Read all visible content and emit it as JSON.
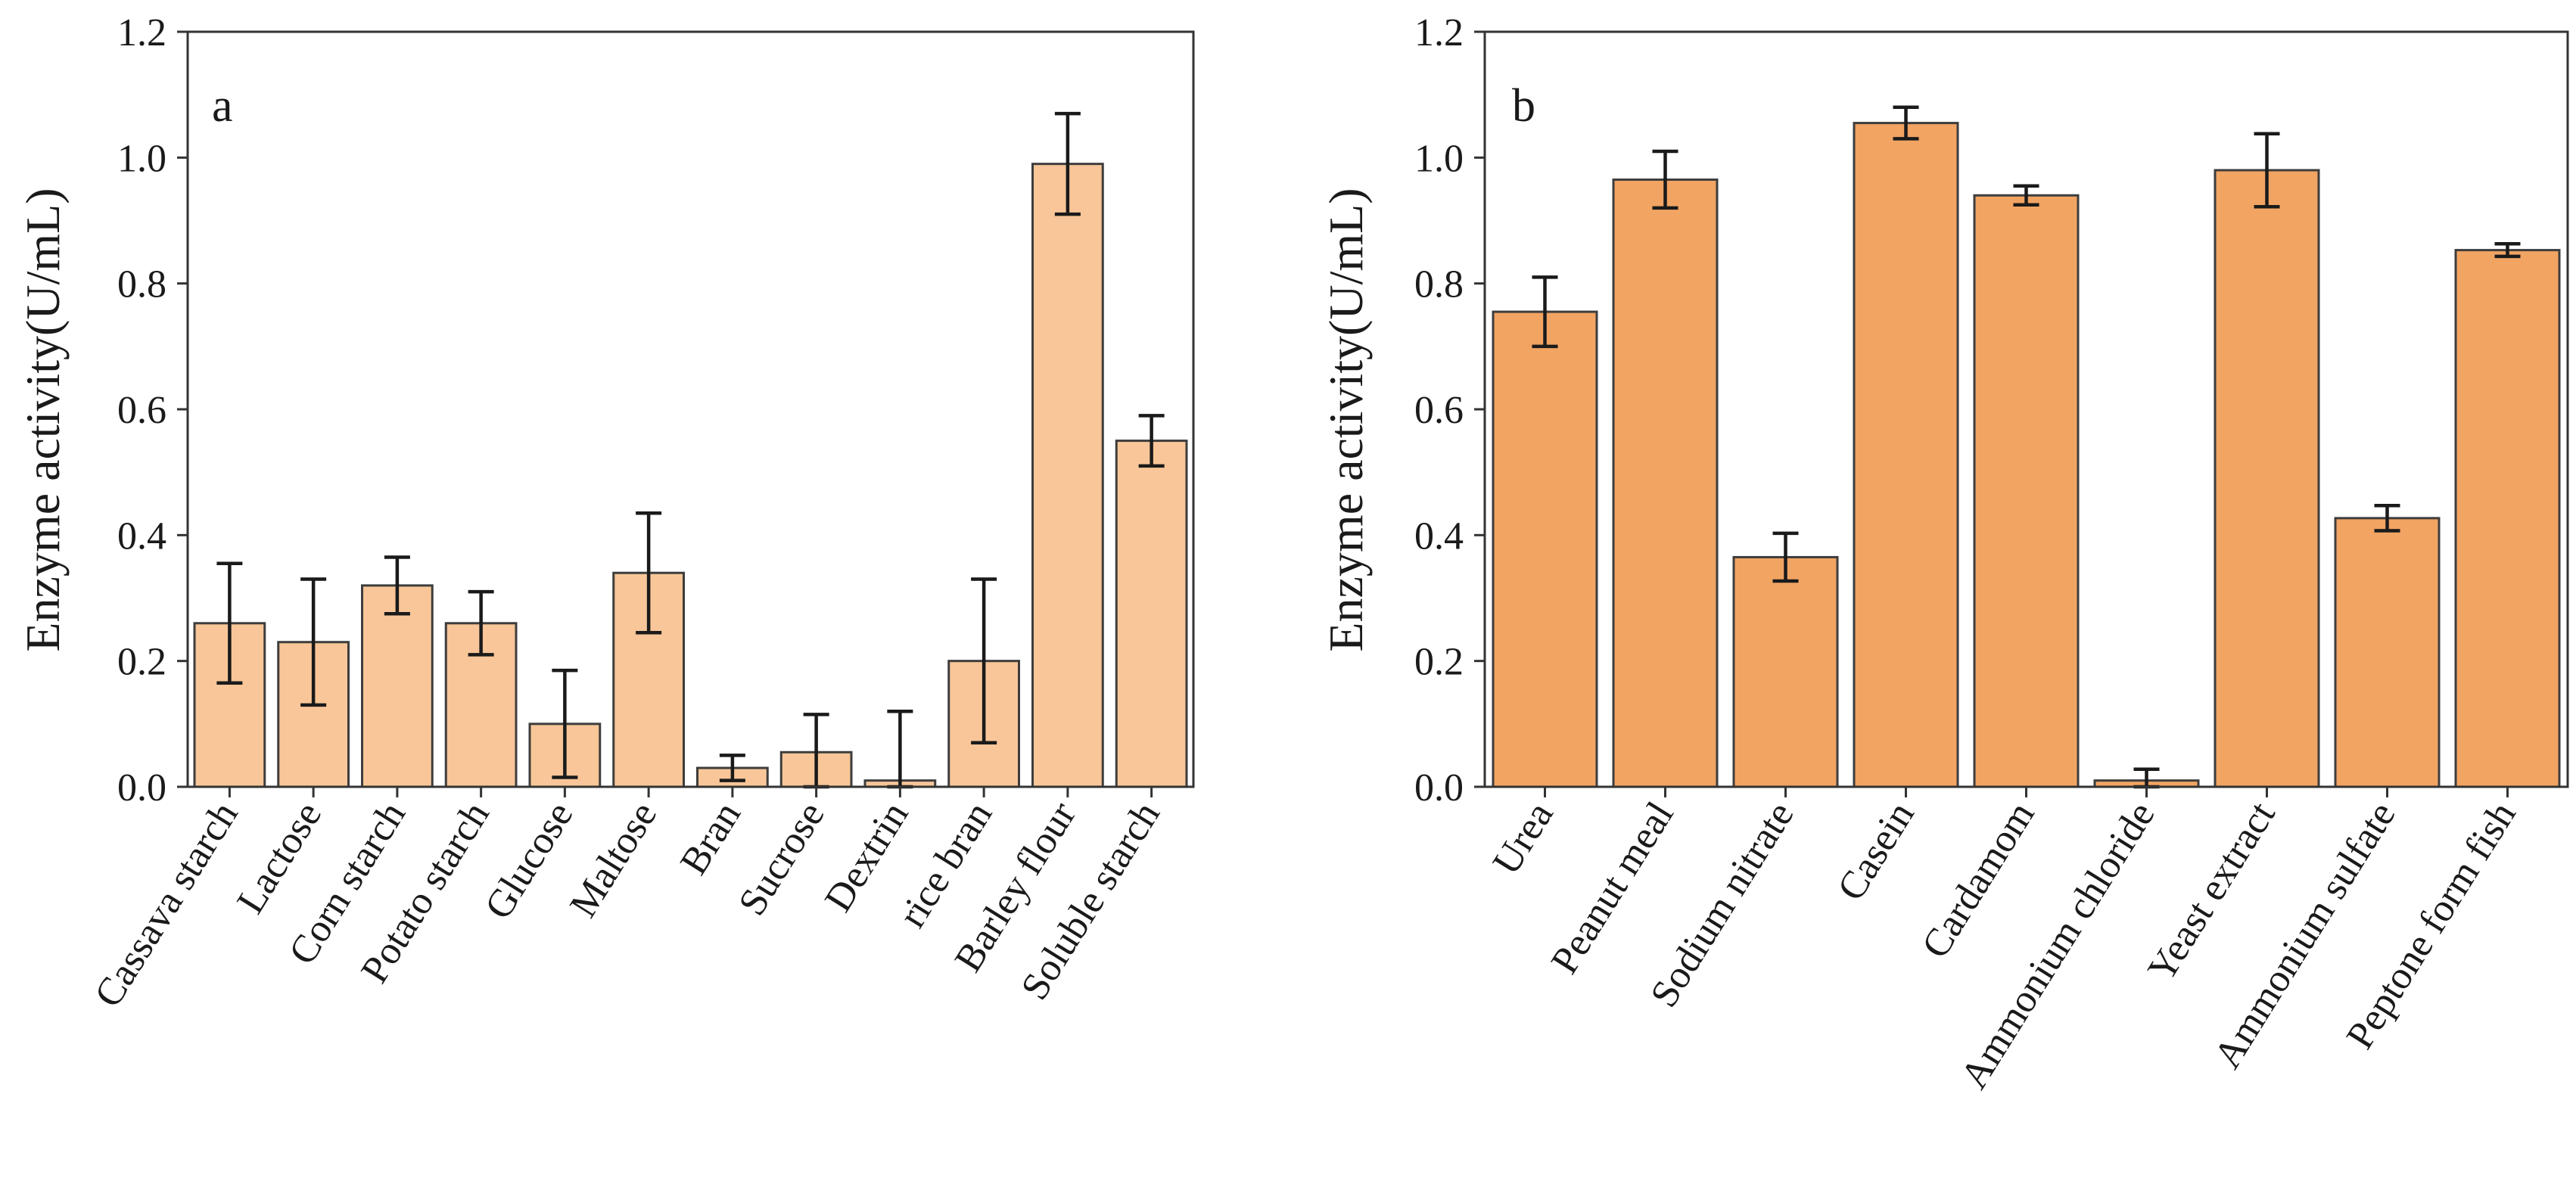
{
  "chart_data": [
    {
      "type": "bar",
      "panel_label": "a",
      "title": "",
      "xlabel": "",
      "ylabel": "Enzyme activity(U/mL)",
      "ylim": [
        0,
        1.2
      ],
      "yticks": [
        "0.0",
        "0.2",
        "0.4",
        "0.6",
        "0.8",
        "1.0",
        "1.2"
      ],
      "bar_color": "#f8c698",
      "categories": [
        "Cassava starch",
        "Lactose",
        "Corn starch",
        "Potato starch",
        "Glucose",
        "Maltose",
        "Bran",
        "Sucrose",
        "Dextrin",
        "rice bran",
        "Barley flour",
        "Soluble starch"
      ],
      "values": [
        0.26,
        0.23,
        0.32,
        0.26,
        0.1,
        0.34,
        0.03,
        0.055,
        0.01,
        0.2,
        0.99,
        0.55
      ],
      "errors": [
        0.095,
        0.1,
        0.045,
        0.05,
        0.085,
        0.095,
        0.02,
        0.06,
        0.11,
        0.13,
        0.08,
        0.04
      ]
    },
    {
      "type": "bar",
      "panel_label": "b",
      "title": "",
      "xlabel": "",
      "ylabel": "Enzyme activity(U/mL)",
      "ylim": [
        0,
        1.2
      ],
      "yticks": [
        "0.0",
        "0.2",
        "0.4",
        "0.6",
        "0.8",
        "1.0",
        "1.2"
      ],
      "bar_color": "#f2a463",
      "categories": [
        "Urea",
        "Peanut meal",
        "Sodium nitrate",
        "Casein",
        "Cardamom",
        "Ammonium chloride",
        "Yeast extract",
        "Ammonium sulfate",
        "Peptone form fish"
      ],
      "values": [
        0.755,
        0.965,
        0.365,
        1.055,
        0.94,
        0.01,
        0.98,
        0.427,
        0.853
      ],
      "errors": [
        0.055,
        0.045,
        0.038,
        0.025,
        0.015,
        0.018,
        0.058,
        0.02,
        0.01
      ]
    }
  ]
}
